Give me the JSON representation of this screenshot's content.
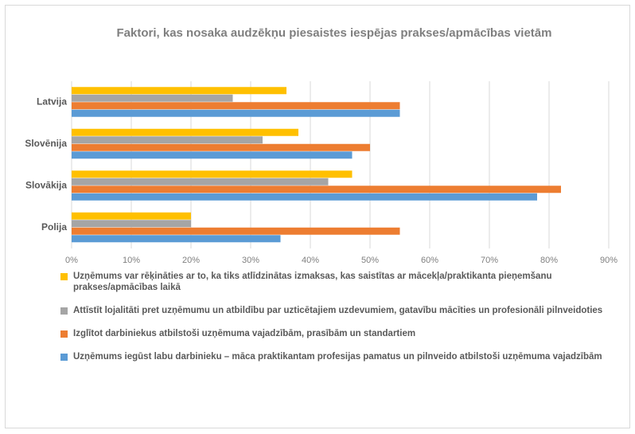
{
  "chart_data": {
    "type": "hbar",
    "title": "Faktori, kas nosaka audzēkņu piesaistes iespējas prakses/apmācības vietām",
    "categories": [
      "Latvija",
      "Slovēnija",
      "Slovākija",
      "Polija"
    ],
    "series": [
      {
        "name": "Uzņēmums var rēķināties ar to, ka tiks atlīdzinātas izmaksas, kas saistītas ar mācekļa/praktikanta pieņemšanu prakses/apmācības laikā",
        "color": "#ffc000",
        "values": [
          36,
          38,
          47,
          20
        ]
      },
      {
        "name": "Attīstīt lojalitāti pret uzņēmumu un atbildību par uzticētajiem uzdevumiem, gatavību mācīties un profesionāli pilnveidoties",
        "color": "#a5a5a5",
        "values": [
          27,
          32,
          43,
          20
        ]
      },
      {
        "name": "Izglītot darbiniekus atbilstoši uzņēmuma vajadzībām, prasībām un standartiem",
        "color": "#ed7d31",
        "values": [
          55,
          50,
          82,
          55
        ]
      },
      {
        "name": "Uzņēmums iegūst labu darbinieku – māca praktikantam profesijas pamatus un pilnveido atbilstoši uzņēmuma vajadzībām",
        "color": "#5b9bd5",
        "values": [
          55,
          47,
          78,
          35
        ]
      }
    ],
    "xlim": [
      0,
      90
    ],
    "xticks": [
      {
        "value": 0,
        "label": "0%"
      },
      {
        "value": 10,
        "label": "10%"
      },
      {
        "value": 20,
        "label": "20%"
      },
      {
        "value": 30,
        "label": "30%"
      },
      {
        "value": 40,
        "label": "40%"
      },
      {
        "value": 50,
        "label": "50%"
      },
      {
        "value": 60,
        "label": "60%"
      },
      {
        "value": 70,
        "label": "70%"
      },
      {
        "value": 80,
        "label": "80%"
      },
      {
        "value": 90,
        "label": "90%"
      }
    ],
    "grid": true
  }
}
